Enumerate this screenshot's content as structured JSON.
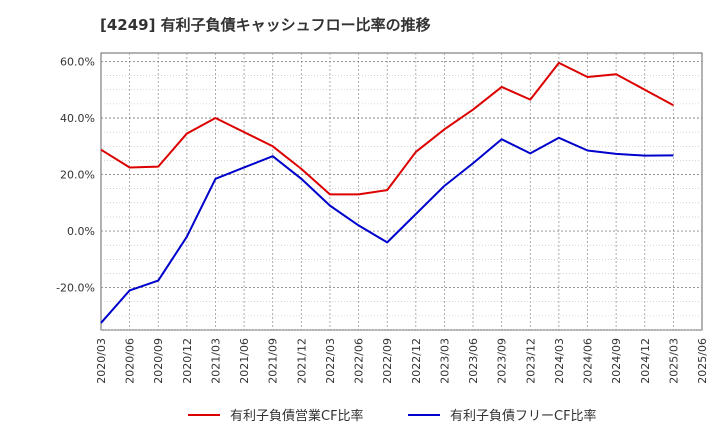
{
  "chart_data": {
    "type": "line",
    "title": "[4249]  有利子負債キャッシュフロー比率の推移",
    "x": [
      "2020/03",
      "2020/06",
      "2020/09",
      "2020/12",
      "2021/03",
      "2021/06",
      "2021/09",
      "2021/12",
      "2022/03",
      "2022/06",
      "2022/09",
      "2022/12",
      "2023/03",
      "2023/06",
      "2023/09",
      "2023/12",
      "2024/03",
      "2024/06",
      "2024/09",
      "2024/12",
      "2025/03"
    ],
    "x_ticks": [
      "2020/03",
      "2020/06",
      "2020/09",
      "2020/12",
      "2021/03",
      "2021/06",
      "2021/09",
      "2021/12",
      "2022/03",
      "2022/06",
      "2022/09",
      "2022/12",
      "2023/03",
      "2023/06",
      "2023/09",
      "2023/12",
      "2024/03",
      "2024/06",
      "2024/09",
      "2024/12",
      "2025/03",
      "2025/06"
    ],
    "series": [
      {
        "name": "有利子負債営業CF比率",
        "color": "#dd0000",
        "values": [
          28.8,
          22.5,
          22.8,
          34.5,
          40.0,
          35.0,
          30.0,
          22.0,
          13.0,
          13.0,
          14.5,
          28.0,
          36.0,
          43.0,
          51.0,
          46.5,
          59.5,
          54.5,
          55.5,
          50.0,
          44.5
        ]
      },
      {
        "name": "有利子負債フリーCF比率",
        "color": "#0000cc",
        "values": [
          -32.5,
          -21.0,
          -17.5,
          -2.0,
          18.5,
          22.5,
          26.5,
          18.5,
          9.0,
          2.0,
          -4.0,
          6.0,
          16.0,
          24.0,
          32.5,
          27.5,
          33.0,
          28.5,
          27.3,
          26.7,
          26.8
        ]
      }
    ],
    "y_ticks": [
      -20,
      0,
      20,
      40,
      60
    ],
    "y_tick_labels": [
      "-20.0%",
      "0.0%",
      "20.0%",
      "40.0%",
      "60.0%"
    ],
    "ylim": [
      -35,
      63
    ],
    "xlabel": "",
    "ylabel": "",
    "grid": true,
    "legend": "bottom"
  }
}
